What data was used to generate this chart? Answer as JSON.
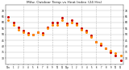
{
  "title": "Milw. Outdoor Temp vs Heat Index (24 Hrs)",
  "title_fontsize": 3.2,
  "background_color": "#ffffff",
  "grid_color": "#bbbbbb",
  "hours": [
    0,
    1,
    2,
    3,
    4,
    5,
    6,
    7,
    8,
    9,
    10,
    11,
    12,
    13,
    14,
    15,
    16,
    17,
    18,
    19,
    20,
    21,
    22,
    23
  ],
  "temp": [
    62,
    58,
    54,
    52,
    50,
    50,
    52,
    50,
    55,
    58,
    58,
    62,
    58,
    60,
    58,
    54,
    52,
    48,
    44,
    42,
    38,
    36,
    34,
    32
  ],
  "heat_index": [
    65,
    60,
    56,
    53,
    51,
    50,
    52,
    51,
    56,
    60,
    60,
    64,
    59,
    62,
    59,
    55,
    53,
    49,
    44,
    41,
    38,
    35,
    32,
    28
  ],
  "temp_color": "#ff8800",
  "heat_color": "#cc0000",
  "black_color": "#000000",
  "xlim": [
    -0.5,
    23.5
  ],
  "ylim": [
    25,
    75
  ],
  "ytick_values": [
    30,
    35,
    40,
    45,
    50,
    55,
    60,
    65,
    70
  ],
  "ytick_labels": [
    "30",
    "35",
    "40",
    "45",
    "50",
    "55",
    "60",
    "65",
    "70"
  ],
  "xtick_labels": [
    "12a",
    "1",
    "2",
    "3",
    "4",
    "5",
    "6",
    "7",
    "8",
    "9",
    "10",
    "11",
    "12p",
    "1",
    "2",
    "3",
    "4",
    "5",
    "6",
    "7",
    "8",
    "9",
    "10",
    "11"
  ],
  "vgrid_positions": [
    3,
    6,
    9,
    12,
    15,
    18,
    21
  ],
  "marker_size": 1.2,
  "tick_fontsize": 2.2,
  "xtick_fontsize": 1.8
}
